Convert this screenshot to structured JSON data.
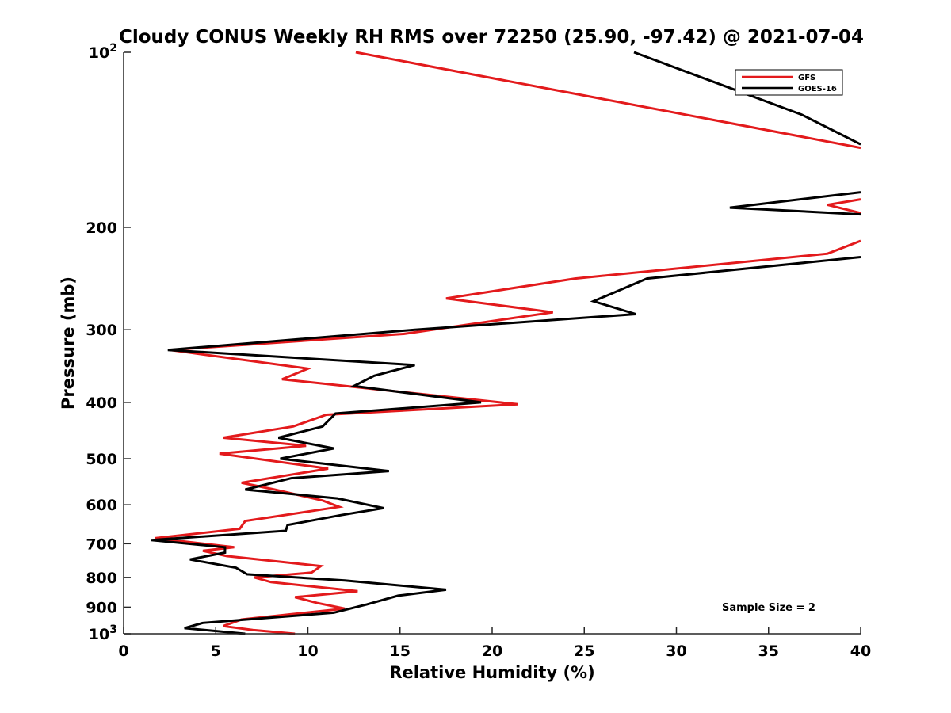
{
  "chart_data": {
    "type": "line",
    "title": "Cloudy CONUS Weekly RH RMS over 72250 (25.90, -97.42) @ 2021-07-04",
    "xlabel": "Relative Humidity (%)",
    "ylabel": "Pressure (mb)",
    "xlim": [
      0,
      40
    ],
    "ylim": [
      100,
      1000
    ],
    "yscale": "log",
    "y_reversed": true,
    "grid": false,
    "legend_position": "top-right",
    "annotation": "Sample Size = 2",
    "xticks": [
      "0",
      "5",
      "10",
      "15",
      "20",
      "25",
      "30",
      "35",
      "40"
    ],
    "yticks": [
      {
        "value": 100,
        "label": "10",
        "exp": "2"
      },
      {
        "value": 200,
        "label": "200"
      },
      {
        "value": 300,
        "label": "300"
      },
      {
        "value": 400,
        "label": "400"
      },
      {
        "value": 500,
        "label": "500"
      },
      {
        "value": 600,
        "label": "600"
      },
      {
        "value": 700,
        "label": "700"
      },
      {
        "value": 800,
        "label": "800"
      },
      {
        "value": 900,
        "label": "900"
      },
      {
        "value": 1000,
        "label": "10",
        "exp": "3"
      }
    ],
    "series": [
      {
        "name": "GFS",
        "color": "#e31a1c",
        "points": [
          [
            12.6,
            100
          ],
          [
            40,
            146
          ],
          [
            null,
            null
          ],
          [
            40,
            179
          ],
          [
            38.2,
            183
          ],
          [
            40,
            189
          ],
          [
            null,
            null
          ],
          [
            40,
            211
          ],
          [
            38.2,
            222
          ],
          [
            24.5,
            245
          ],
          [
            17.5,
            265
          ],
          [
            23.3,
            280
          ],
          [
            15.2,
            305
          ],
          [
            2.5,
            325
          ],
          [
            10.0,
            350
          ],
          [
            8.6,
            365
          ],
          [
            21.4,
            403
          ],
          [
            11.0,
            420
          ],
          [
            9.2,
            440
          ],
          [
            5.4,
            460
          ],
          [
            9.9,
            475
          ],
          [
            5.2,
            490
          ],
          [
            11.1,
            520
          ],
          [
            6.4,
            550
          ],
          [
            8.2,
            565
          ],
          [
            10.8,
            590
          ],
          [
            11.7,
            605
          ],
          [
            6.6,
            640
          ],
          [
            6.3,
            660
          ],
          [
            1.7,
            685
          ],
          [
            6.0,
            710
          ],
          [
            4.3,
            720
          ],
          [
            5.6,
            735
          ],
          [
            10.7,
            765
          ],
          [
            10.2,
            785
          ],
          [
            7.1,
            800
          ],
          [
            8.0,
            815
          ],
          [
            12.7,
            845
          ],
          [
            9.3,
            865
          ],
          [
            10.5,
            885
          ],
          [
            12.0,
            905
          ],
          [
            6.4,
            945
          ],
          [
            5.4,
            970
          ],
          [
            7.0,
            985
          ],
          [
            9.3,
            1000
          ]
        ]
      },
      {
        "name": "GOES-16",
        "color": "#000000",
        "points": [
          [
            27.7,
            100
          ],
          [
            36.8,
            128
          ],
          [
            40,
            144
          ],
          [
            null,
            null
          ],
          [
            40,
            174
          ],
          [
            32.9,
            185
          ],
          [
            40,
            190
          ],
          [
            null,
            null
          ],
          [
            40,
            225
          ],
          [
            28.4,
            245
          ],
          [
            25.5,
            268
          ],
          [
            27.8,
            282
          ],
          [
            15.8,
            300
          ],
          [
            2.4,
            325
          ],
          [
            15.8,
            345
          ],
          [
            13.6,
            360
          ],
          [
            12.5,
            375
          ],
          [
            19.4,
            400
          ],
          [
            11.5,
            418
          ],
          [
            10.8,
            440
          ],
          [
            8.4,
            460
          ],
          [
            11.4,
            480
          ],
          [
            8.5,
            500
          ],
          [
            14.4,
            525
          ],
          [
            9.1,
            540
          ],
          [
            6.6,
            565
          ],
          [
            11.6,
            585
          ],
          [
            14.1,
            608
          ],
          [
            11.8,
            625
          ],
          [
            8.9,
            650
          ],
          [
            8.8,
            665
          ],
          [
            1.5,
            690
          ],
          [
            5.5,
            710
          ],
          [
            5.5,
            725
          ],
          [
            3.6,
            745
          ],
          [
            6.1,
            770
          ],
          [
            6.7,
            790
          ],
          [
            12.0,
            810
          ],
          [
            17.5,
            840
          ],
          [
            14.9,
            860
          ],
          [
            13.2,
            890
          ],
          [
            11.4,
            920
          ],
          [
            4.3,
            958
          ],
          [
            3.3,
            978
          ],
          [
            6.6,
            1000
          ]
        ]
      }
    ]
  }
}
